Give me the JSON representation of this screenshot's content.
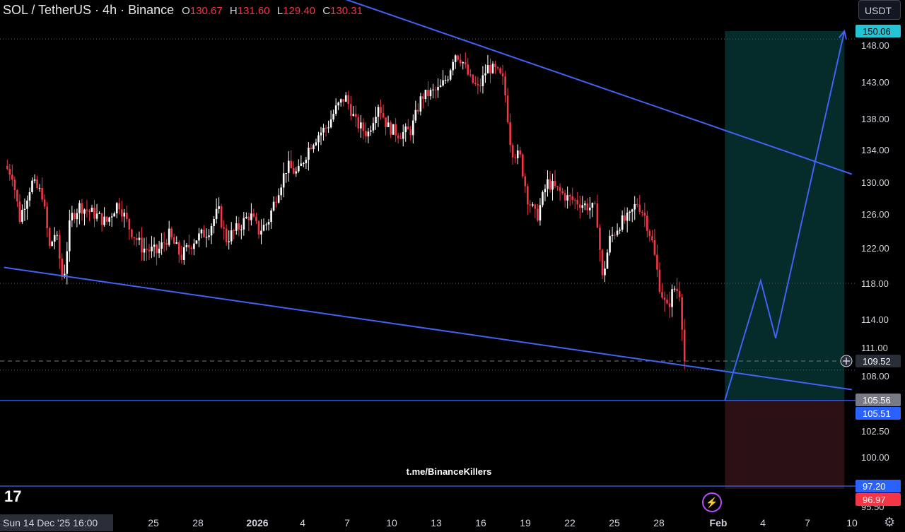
{
  "header": {
    "symbol": "SOL / TetherUS · 4h · Binance",
    "open_label": "O",
    "open": "130.67",
    "high_label": "H",
    "high": "131.60",
    "low_label": "L",
    "low": "129.40",
    "close_label": "C",
    "close": "130.31"
  },
  "unit_button": "USDT",
  "watermark": "t.me/BinanceKillers",
  "crosshair_date": "Sun 14 Dec '25   16:00",
  "logo": "17",
  "colors": {
    "background": "#000000",
    "candle_up": "#ffffff",
    "candle_down": "#f23645",
    "trendline": "#3f63f5",
    "target_zone": "#052b2a",
    "stop_zone": "#2a0f13",
    "price_tag_blue": "#2962ff",
    "price_tag_red": "#f23645",
    "price_tag_cyan": "#22c4d6"
  },
  "chart_data": {
    "type": "candlestick",
    "symbol": "SOL/USDT",
    "timeframe": "4h",
    "ohlc_last": {
      "open": 130.67,
      "high": 131.6,
      "low": 129.4,
      "close": 130.31
    },
    "ylim": [
      95,
      152
    ],
    "y_ticks": [
      "148.00",
      "143.00",
      "138.00",
      "134.00",
      "130.00",
      "126.00",
      "122.00",
      "118.00",
      "114.00",
      "111.00",
      "108.00",
      "105.56",
      "102.50",
      "100.00",
      "95.50"
    ],
    "x_tick_labels": [
      "25",
      "28",
      "2026",
      "4",
      "7",
      "10",
      "13",
      "16",
      "19",
      "22",
      "25",
      "28",
      "Feb",
      "4",
      "7",
      "10"
    ],
    "price_tags": [
      {
        "label": "150.06",
        "value": 150.06,
        "style": "cyan"
      },
      {
        "label": "109.52",
        "value": 109.52,
        "style": "current"
      },
      {
        "label": "105.56",
        "value": 105.56,
        "style": "gray"
      },
      {
        "label": "105.51",
        "value": 105.51,
        "style": "blue"
      },
      {
        "label": "97.20",
        "value": 97.2,
        "style": "blue"
      },
      {
        "label": "96.97",
        "value": 96.97,
        "style": "red"
      }
    ],
    "horizontal_lines": [
      {
        "value": 148.9,
        "style": "dotted"
      },
      {
        "value": 118.0,
        "style": "dotted"
      },
      {
        "value": 109.52,
        "style": "dashed"
      },
      {
        "value": 108.6,
        "style": "dotted"
      },
      {
        "value": 105.51,
        "style": "solid"
      },
      {
        "value": 97.2,
        "style": "solid"
      }
    ],
    "position": {
      "entry": 105.51,
      "target": 150.06,
      "stop": 96.97,
      "start_day": 48.2,
      "end_day": 56.2
    },
    "trendlines": [
      {
        "from": {
          "day": 20.4,
          "price": 156.5
        },
        "to": {
          "day": 56.7,
          "price": 131.0
        }
      },
      {
        "from": {
          "day": -0.05,
          "price": 119.8
        },
        "to": {
          "day": 56.7,
          "price": 106.6
        }
      }
    ],
    "projection_path": [
      {
        "day": 48.2,
        "price": 105.51
      },
      {
        "day": 50.6,
        "price": 118.3
      },
      {
        "day": 51.6,
        "price": 112.0
      },
      {
        "day": 56.2,
        "price": 150.06
      }
    ],
    "close_path": [
      {
        "day": 0.0,
        "price": 132.0
      },
      {
        "day": 0.5,
        "price": 131.0
      },
      {
        "day": 1.0,
        "price": 125.5
      },
      {
        "day": 1.8,
        "price": 130.0
      },
      {
        "day": 2.5,
        "price": 128.5
      },
      {
        "day": 3.0,
        "price": 122.0
      },
      {
        "day": 3.4,
        "price": 124.0
      },
      {
        "day": 3.9,
        "price": 118.0
      },
      {
        "day": 4.4,
        "price": 125.5
      },
      {
        "day": 5.0,
        "price": 127.0
      },
      {
        "day": 6.0,
        "price": 126.0
      },
      {
        "day": 6.8,
        "price": 125.0
      },
      {
        "day": 7.6,
        "price": 127.5
      },
      {
        "day": 8.3,
        "price": 124.5
      },
      {
        "day": 9.2,
        "price": 122.0
      },
      {
        "day": 10.2,
        "price": 121.5
      },
      {
        "day": 11.0,
        "price": 123.5
      },
      {
        "day": 11.8,
        "price": 121.0
      },
      {
        "day": 12.7,
        "price": 123.0
      },
      {
        "day": 13.6,
        "price": 124.0
      },
      {
        "day": 14.3,
        "price": 126.5
      },
      {
        "day": 14.8,
        "price": 123.0
      },
      {
        "day": 15.7,
        "price": 124.5
      },
      {
        "day": 16.4,
        "price": 126.0
      },
      {
        "day": 17.0,
        "price": 124.0
      },
      {
        "day": 17.6,
        "price": 125.0
      },
      {
        "day": 18.3,
        "price": 129.0
      },
      {
        "day": 18.9,
        "price": 132.0
      },
      {
        "day": 19.6,
        "price": 131.0
      },
      {
        "day": 20.4,
        "price": 134.5
      },
      {
        "day": 21.0,
        "price": 136.0
      },
      {
        "day": 21.6,
        "price": 137.0
      },
      {
        "day": 22.2,
        "price": 139.5
      },
      {
        "day": 22.8,
        "price": 141.0
      },
      {
        "day": 23.5,
        "price": 137.5
      },
      {
        "day": 24.3,
        "price": 136.0
      },
      {
        "day": 25.0,
        "price": 140.0
      },
      {
        "day": 25.6,
        "price": 137.0
      },
      {
        "day": 26.4,
        "price": 136.0
      },
      {
        "day": 27.2,
        "price": 136.5
      },
      {
        "day": 27.9,
        "price": 141.0
      },
      {
        "day": 28.5,
        "price": 141.5
      },
      {
        "day": 29.1,
        "price": 142.0
      },
      {
        "day": 29.7,
        "price": 144.0
      },
      {
        "day": 30.1,
        "price": 147.0
      },
      {
        "day": 30.6,
        "price": 146.0
      },
      {
        "day": 31.1,
        "price": 143.5
      },
      {
        "day": 31.7,
        "price": 142.0
      },
      {
        "day": 32.3,
        "price": 145.0
      },
      {
        "day": 32.9,
        "price": 144.5
      },
      {
        "day": 33.4,
        "price": 143.0
      },
      {
        "day": 33.9,
        "price": 134.0
      },
      {
        "day": 34.5,
        "price": 133.0
      },
      {
        "day": 35.0,
        "price": 128.0
      },
      {
        "day": 35.6,
        "price": 125.5
      },
      {
        "day": 36.3,
        "price": 130.0
      },
      {
        "day": 37.0,
        "price": 129.0
      },
      {
        "day": 37.7,
        "price": 128.0
      },
      {
        "day": 38.4,
        "price": 127.5
      },
      {
        "day": 39.0,
        "price": 127.0
      },
      {
        "day": 39.6,
        "price": 126.5
      },
      {
        "day": 40.0,
        "price": 118.5
      },
      {
        "day": 40.5,
        "price": 123.0
      },
      {
        "day": 41.2,
        "price": 125.0
      },
      {
        "day": 41.8,
        "price": 125.5
      },
      {
        "day": 42.3,
        "price": 127.5
      },
      {
        "day": 42.8,
        "price": 126.0
      },
      {
        "day": 43.3,
        "price": 123.0
      },
      {
        "day": 43.8,
        "price": 118.0
      },
      {
        "day": 44.3,
        "price": 115.0
      },
      {
        "day": 44.8,
        "price": 117.5
      },
      {
        "day": 45.2,
        "price": 117.0
      },
      {
        "day": 45.5,
        "price": 109.52
      }
    ]
  }
}
